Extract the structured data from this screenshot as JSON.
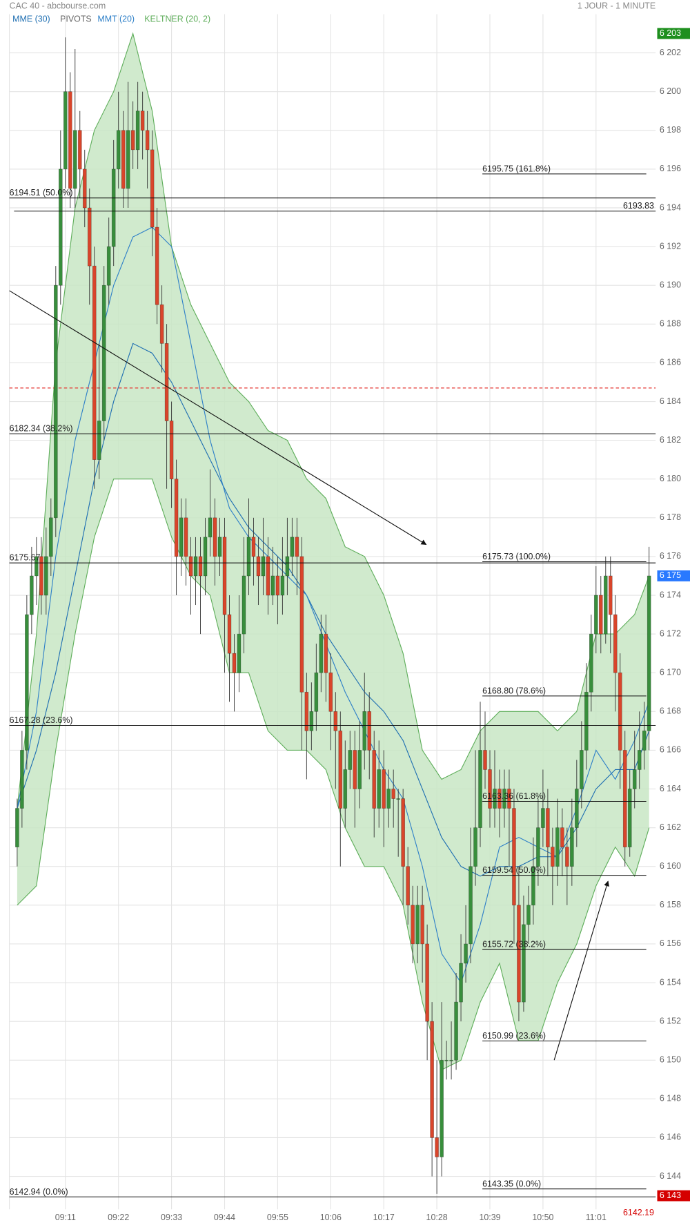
{
  "chart_data": {
    "type": "candlestick",
    "title": "CAC 40 - abcbourse.com",
    "subtitle": "1 JOUR - 1 MINUTE",
    "categories": [
      null,
      null,
      null,
      null,
      null,
      null,
      null,
      null,
      null,
      null,
      "09:11",
      null,
      null,
      null,
      null,
      null,
      null,
      null,
      null,
      null,
      null,
      "09:22",
      null,
      null,
      null,
      null,
      null,
      null,
      null,
      null,
      null,
      null,
      "09:33",
      null,
      null,
      null,
      null,
      null,
      null,
      null,
      null,
      null,
      null,
      "09:44",
      null,
      null,
      null,
      null,
      null,
      null,
      null,
      null,
      null,
      null,
      "09:55",
      null,
      null,
      null,
      null,
      null,
      null,
      null,
      null,
      null,
      null,
      "10:06",
      null,
      null,
      null,
      null,
      null,
      null,
      null,
      null,
      null,
      null,
      "10:17",
      null,
      null,
      null,
      null,
      null,
      null,
      null,
      null,
      null,
      null,
      "10:28",
      null,
      null,
      null,
      null,
      null,
      null,
      null,
      null,
      null,
      null,
      "10:39",
      null,
      null,
      null,
      null,
      null,
      null,
      null,
      null,
      null,
      null,
      "10:50",
      null,
      null,
      null,
      null,
      null,
      null,
      null,
      null,
      null,
      null,
      "11:01",
      null,
      null,
      null,
      null,
      null,
      null,
      null,
      null,
      null,
      null,
      null
    ],
    "ohlc": [
      [
        6161,
        6163.5,
        6160,
        6163
      ],
      [
        6163,
        6167,
        6162,
        6166
      ],
      [
        6166,
        6174,
        6165,
        6173
      ],
      [
        6173,
        6176.5,
        6172,
        6175
      ],
      [
        6175,
        6177,
        6173.5,
        6176
      ],
      [
        6176,
        6177,
        6173,
        6174
      ],
      [
        6174,
        6177.5,
        6173,
        6176
      ],
      [
        6176,
        6179,
        6175,
        6178
      ],
      [
        6178,
        6191,
        6177,
        6190
      ],
      [
        6190,
        6198,
        6189,
        6196
      ],
      [
        6196,
        6202.8,
        6195,
        6200
      ],
      [
        6200,
        6201,
        6194,
        6195
      ],
      [
        6195,
        6202.2,
        6194,
        6198
      ],
      [
        6198,
        6199,
        6194.5,
        6196
      ],
      [
        6196,
        6197,
        6193,
        6194
      ],
      [
        6194,
        6195,
        6189,
        6191
      ],
      [
        6191,
        6192,
        6179.5,
        6181
      ],
      [
        6181,
        6187,
        6180,
        6183
      ],
      [
        6183,
        6191,
        6182,
        6190
      ],
      [
        6190,
        6193.5,
        6189,
        6192
      ],
      [
        6192,
        6197.5,
        6191,
        6196
      ],
      [
        6196,
        6200,
        6195,
        6198
      ],
      [
        6198,
        6199,
        6194,
        6195
      ],
      [
        6195,
        6200.5,
        6194,
        6198
      ],
      [
        6198,
        6199.5,
        6196,
        6197
      ],
      [
        6197,
        6200.5,
        6196,
        6199
      ],
      [
        6199,
        6200,
        6196.5,
        6198
      ],
      [
        6198,
        6199,
        6195,
        6197
      ],
      [
        6197,
        6198,
        6191.5,
        6193
      ],
      [
        6193,
        6194,
        6188,
        6189
      ],
      [
        6189,
        6190,
        6185.5,
        6187
      ],
      [
        6187,
        6188,
        6179.5,
        6183
      ],
      [
        6183,
        6184,
        6178.5,
        6180
      ],
      [
        6180,
        6181,
        6174,
        6176
      ],
      [
        6176,
        6179,
        6175,
        6178
      ],
      [
        6178,
        6179,
        6174.5,
        6176
      ],
      [
        6176,
        6177,
        6173,
        6175
      ],
      [
        6175,
        6177,
        6173.5,
        6176
      ],
      [
        6176,
        6177,
        6172,
        6175
      ],
      [
        6175,
        6178,
        6174,
        6177
      ],
      [
        6177,
        6180.5,
        6176,
        6178
      ],
      [
        6178,
        6179,
        6174.5,
        6176
      ],
      [
        6176,
        6178,
        6175,
        6177
      ],
      [
        6177,
        6178,
        6170,
        6173
      ],
      [
        6173,
        6174,
        6168.5,
        6171
      ],
      [
        6171,
        6172,
        6168,
        6170
      ],
      [
        6170,
        6174,
        6169,
        6172
      ],
      [
        6172,
        6177,
        6171,
        6175
      ],
      [
        6175,
        6179,
        6174,
        6177
      ],
      [
        6177,
        6178,
        6174.5,
        6176
      ],
      [
        6176,
        6177,
        6173.5,
        6175
      ],
      [
        6175,
        6178,
        6174,
        6176
      ],
      [
        6176,
        6177,
        6173,
        6174
      ],
      [
        6174,
        6176.5,
        6173.5,
        6175
      ],
      [
        6175,
        6176,
        6172.5,
        6174
      ],
      [
        6174,
        6177,
        6173,
        6175
      ],
      [
        6175,
        6178,
        6174,
        6176
      ],
      [
        6176,
        6178,
        6175,
        6177
      ],
      [
        6177,
        6178,
        6174,
        6176
      ],
      [
        6176,
        6177,
        6166,
        6169
      ],
      [
        6169,
        6170,
        6164.5,
        6167
      ],
      [
        6167,
        6169.5,
        6166,
        6168
      ],
      [
        6168,
        6171.5,
        6167,
        6170
      ],
      [
        6170,
        6173,
        6169,
        6172
      ],
      [
        6172,
        6173,
        6168.5,
        6170
      ],
      [
        6170,
        6171,
        6166,
        6168
      ],
      [
        6168,
        6169,
        6164,
        6167
      ],
      [
        6167,
        6168,
        6160,
        6163
      ],
      [
        6163,
        6166.5,
        6162,
        6165
      ],
      [
        6165,
        6167,
        6164,
        6166
      ],
      [
        6166,
        6167,
        6162,
        6164
      ],
      [
        6164,
        6167.5,
        6163,
        6166
      ],
      [
        6166,
        6170,
        6165,
        6168
      ],
      [
        6168,
        6169,
        6164.5,
        6166
      ],
      [
        6166,
        6167,
        6161.5,
        6163
      ],
      [
        6163,
        6166.5,
        6162,
        6165
      ],
      [
        6165,
        6166,
        6161,
        6163
      ],
      [
        6163,
        6165,
        6162,
        6164
      ],
      [
        6164,
        6165,
        6162,
        6163.5
      ],
      [
        6163.5,
        6164,
        6160.5,
        6163.5
      ],
      [
        6163.5,
        6164,
        6158,
        6160
      ],
      [
        6160,
        6161,
        6157,
        6158
      ],
      [
        6158,
        6159,
        6155,
        6156
      ],
      [
        6156,
        6159,
        6155,
        6158
      ],
      [
        6158,
        6159,
        6154,
        6156
      ],
      [
        6156,
        6157,
        6150,
        6152
      ],
      [
        6152,
        6153,
        6144,
        6146
      ],
      [
        6146,
        6150,
        6143.1,
        6145
      ],
      [
        6145,
        6153,
        6144,
        6150
      ],
      [
        6150,
        6151,
        6149,
        6150
      ],
      [
        6150,
        6152,
        6149,
        6150
      ],
      [
        6150,
        6154.5,
        6149.5,
        6153
      ],
      [
        6153,
        6156.5,
        6152,
        6155
      ],
      [
        6155,
        6158,
        6154,
        6156
      ],
      [
        6156,
        6162,
        6155,
        6160
      ],
      [
        6160,
        6166,
        6159,
        6162
      ],
      [
        6162,
        6168.5,
        6161,
        6166
      ],
      [
        6166,
        6168,
        6164,
        6165
      ],
      [
        6165,
        6166,
        6162,
        6163
      ],
      [
        6163,
        6166,
        6162,
        6164
      ],
      [
        6164,
        6165,
        6161.5,
        6163
      ],
      [
        6163,
        6165,
        6162,
        6164
      ],
      [
        6164,
        6165,
        6160,
        6163
      ],
      [
        6163,
        6164,
        6156,
        6158
      ],
      [
        6158,
        6160,
        6152,
        6153
      ],
      [
        6153,
        6158.5,
        6152.5,
        6157
      ],
      [
        6157,
        6159,
        6156,
        6158
      ],
      [
        6158,
        6161.5,
        6157,
        6160
      ],
      [
        6160,
        6163.5,
        6159,
        6162
      ],
      [
        6162,
        6165,
        6161,
        6163
      ],
      [
        6163,
        6164,
        6159.5,
        6161
      ],
      [
        6161,
        6162,
        6158,
        6160
      ],
      [
        6160,
        6163.5,
        6159,
        6162
      ],
      [
        6162,
        6163,
        6159.5,
        6161
      ],
      [
        6161,
        6162,
        6158,
        6160
      ],
      [
        6160,
        6163.5,
        6159,
        6162
      ],
      [
        6162,
        6165.5,
        6161,
        6164
      ],
      [
        6164,
        6167.5,
        6163,
        6166
      ],
      [
        6166,
        6170.5,
        6165,
        6169
      ],
      [
        6169,
        6173,
        6168,
        6172
      ],
      [
        6172,
        6175.5,
        6171,
        6174
      ],
      [
        6174,
        6175,
        6171,
        6172
      ],
      [
        6172,
        6176,
        6171.5,
        6175
      ],
      [
        6175,
        6176,
        6171,
        6173
      ],
      [
        6173,
        6174,
        6168,
        6170
      ],
      [
        6170,
        6171,
        6164,
        6166
      ],
      [
        6166,
        6167,
        6160,
        6161
      ],
      [
        6161,
        6165,
        6160.5,
        6164
      ],
      [
        6164,
        6167,
        6163,
        6165
      ],
      [
        6165,
        6168,
        6164,
        6166
      ],
      [
        6166,
        6168.5,
        6165,
        6167
      ],
      [
        6167,
        6176.5,
        6166,
        6175
      ]
    ],
    "up_color": "#388e3c",
    "down_color": "#d9452b",
    "ylim": [
      6142.3,
      6204.0
    ],
    "yticks": [
      {
        "value": 6144,
        "label": "6 144"
      },
      {
        "value": 6146,
        "label": "6 146"
      },
      {
        "value": 6148,
        "label": "6 148"
      },
      {
        "value": 6150,
        "label": "6 150"
      },
      {
        "value": 6152,
        "label": "6 152"
      },
      {
        "value": 6154,
        "label": "6 154"
      },
      {
        "value": 6156,
        "label": "6 156"
      },
      {
        "value": 6158,
        "label": "6 158"
      },
      {
        "value": 6160,
        "label": "6 160"
      },
      {
        "value": 6162,
        "label": "6 162"
      },
      {
        "value": 6164,
        "label": "6 164"
      },
      {
        "value": 6166,
        "label": "6 166"
      },
      {
        "value": 6168,
        "label": "6 168"
      },
      {
        "value": 6170,
        "label": "6 170"
      },
      {
        "value": 6172,
        "label": "6 172"
      },
      {
        "value": 6174,
        "label": "6 174"
      },
      {
        "value": 6176,
        "label": "6 176"
      },
      {
        "value": 6178,
        "label": "6 178"
      },
      {
        "value": 6180,
        "label": "6 180"
      },
      {
        "value": 6182,
        "label": "6 182"
      },
      {
        "value": 6184,
        "label": "6 184"
      },
      {
        "value": 6186,
        "label": "6 186"
      },
      {
        "value": 6188,
        "label": "6 188"
      },
      {
        "value": 6190,
        "label": "6 190"
      },
      {
        "value": 6192,
        "label": "6 192"
      },
      {
        "value": 6194,
        "label": "6 194"
      },
      {
        "value": 6196,
        "label": "6 196"
      },
      {
        "value": 6198,
        "label": "6 198"
      },
      {
        "value": 6200,
        "label": "6 200"
      },
      {
        "value": 6202,
        "label": "6 202"
      }
    ],
    "grid": true,
    "overlays": {
      "x": [
        0,
        4,
        8,
        12,
        16,
        20,
        24,
        28,
        32,
        36,
        40,
        44,
        48,
        52,
        56,
        60,
        64,
        68,
        72,
        76,
        80,
        84,
        88,
        92,
        96,
        100,
        104,
        108,
        112,
        116,
        120,
        124,
        128,
        131
      ],
      "series": [
        {
          "name": "MME (30)",
          "color": "#1f6fb2",
          "values": [
            6163,
            6166,
            6170,
            6175,
            6180,
            6184,
            6187,
            6186.5,
            6185,
            6183,
            6181,
            6179,
            6177.5,
            6176.5,
            6175.5,
            6174,
            6172,
            6170.5,
            6169,
            6168,
            6166.5,
            6164,
            6161.5,
            6160,
            6159.5,
            6160,
            6160,
            6160.5,
            6160.5,
            6162,
            6164,
            6165,
            6165,
            6167
          ]
        },
        {
          "name": "MMT (20)",
          "color": "#2f80c8",
          "values": [
            6163,
            6168,
            6176,
            6182,
            6186,
            6190,
            6192.5,
            6193,
            6192,
            6187,
            6182,
            6178.5,
            6177,
            6176,
            6175,
            6174,
            6171.5,
            6169,
            6167,
            6165,
            6163.5,
            6160,
            6155.5,
            6154,
            6157,
            6161,
            6161.5,
            6161,
            6160.5,
            6163,
            6166,
            6164.5,
            6166.5,
            6168.5
          ]
        }
      ],
      "keltner": {
        "name": "KELTNER (20, 2)",
        "color": "#5fae5b",
        "fill": "#c8e6c4",
        "upper": [
          6163,
          6172,
          6186,
          6194,
          6198,
          6200,
          6203,
          6199,
          6192,
          6189,
          6187,
          6185,
          6184,
          6182.5,
          6182,
          6180,
          6179,
          6176.5,
          6176,
          6174,
          6171,
          6166,
          6164.5,
          6165,
          6167,
          6168,
          6168,
          6168,
          6167,
          6168,
          6172,
          6172,
          6173,
          6175
        ],
        "lower": [
          6158,
          6159,
          6166,
          6172,
          6177,
          6180,
          6180,
          6180,
          6177,
          6175,
          6174,
          6170,
          6170,
          6167,
          6166,
          6166,
          6165,
          6162,
          6160,
          6160,
          6158,
          6153,
          6149.5,
          6150,
          6153,
          6155,
          6151,
          6151,
          6154,
          6156,
          6159,
          6161,
          6159.5,
          6162
        ]
      }
    },
    "pivot": {
      "name": "PIVOTS",
      "value": 6184.7,
      "color": "#e53935"
    },
    "fib_full": [
      {
        "value": 6194.51,
        "label": "6194.51 (50.0%)"
      },
      {
        "value": 6182.34,
        "label": "6182.34 (38.2%)"
      },
      6175.67,
      {
        "value": 6167.28,
        "label": "6167.28 (23.6%)"
      },
      {
        "value": 6142.94,
        "label": "6142.94 (0.0%)"
      }
    ],
    "fib_short": [
      {
        "value": 6195.75,
        "label": "6195.75 (161.8%)"
      },
      {
        "value": 6175.73,
        "label": "6175.73 (100.0%)"
      },
      {
        "value": 6168.8,
        "label": "6168.80 (78.6%)"
      },
      {
        "value": 6163.36,
        "label": "6163.36 (61.8%)"
      },
      {
        "value": 6159.54,
        "label": "6159.54 (50.0%)"
      },
      {
        "value": 6155.72,
        "label": "6155.72 (38.2%)"
      },
      {
        "value": 6150.99,
        "label": "6150.99 (23.6%)"
      },
      {
        "value": 6143.35,
        "label": "6143.35 (0.0%)"
      }
    ],
    "level_right": 6193.83,
    "price_markers": [
      {
        "value": 6203,
        "label": "6 203",
        "color": "#1e8f1e"
      },
      {
        "value": 6175,
        "label": "6 175",
        "color": "#2979ff"
      },
      {
        "value": 6143,
        "label": "6 143",
        "color": "#d50000"
      },
      {
        "value": 6142.19,
        "color": "#d50000"
      }
    ]
  }
}
